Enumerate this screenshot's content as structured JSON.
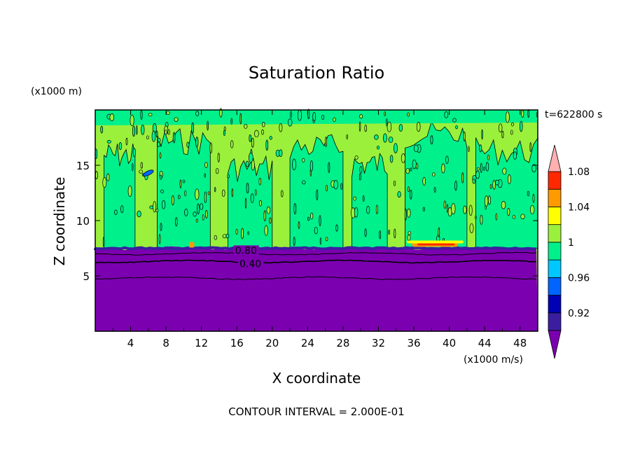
{
  "chart_data": {
    "type": "heatmap",
    "title": "Saturation Ratio",
    "xlabel": "X coordinate",
    "ylabel": "Z coordinate",
    "x_units": "(x1000 m/s)",
    "y_units": "(x1000 m)",
    "time_label": "t=622800 s",
    "footer": "CONTOUR INTERVAL = 2.000E-01",
    "xlim": [
      0,
      50
    ],
    "ylim": [
      0,
      20
    ],
    "x_ticks": [
      "4",
      "8",
      "12",
      "16",
      "20",
      "24",
      "28",
      "32",
      "36",
      "40",
      "44",
      "48"
    ],
    "y_ticks": [
      "5",
      "10",
      "15"
    ],
    "contour_labels": [
      "0.80",
      "0.40"
    ],
    "colorbar": {
      "labels": [
        "0.92",
        "0.96",
        "1",
        "1.04",
        "1.08"
      ],
      "levels": [
        0.9,
        0.92,
        0.94,
        0.96,
        0.98,
        1.0,
        1.02,
        1.04,
        1.06,
        1.08,
        1.1
      ],
      "colors": [
        "#7b00b0",
        "#3b1ea0",
        "#0000b4",
        "#0064ff",
        "#00c8ff",
        "#00f08c",
        "#9bf03c",
        "#ffff00",
        "#ff9b00",
        "#ff2800",
        "#ffb0b0"
      ]
    },
    "layers": {
      "dry_lower": "#7b00b0",
      "moist_upper_band": "#9bf03c",
      "moist_upper_alt": "#00f08c"
    },
    "layer_top_km": 7.5,
    "contour_heights_km": [
      7.0,
      6.3,
      4.8
    ]
  }
}
